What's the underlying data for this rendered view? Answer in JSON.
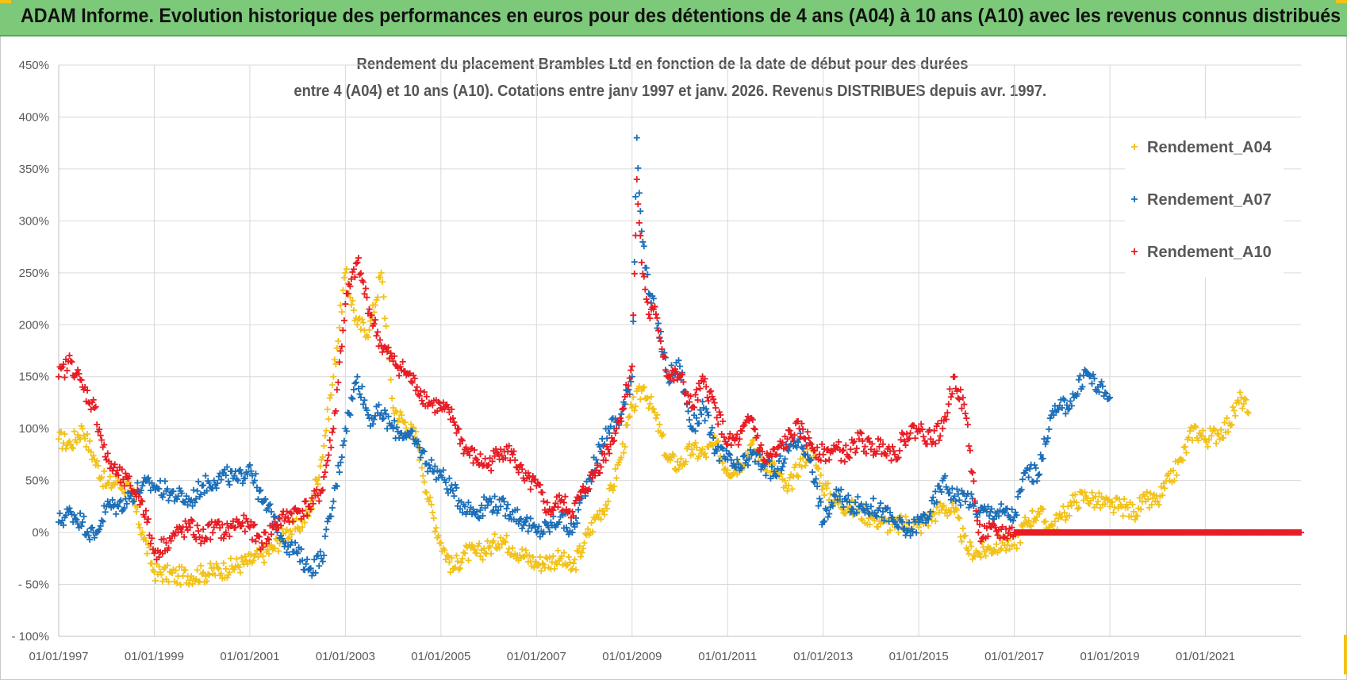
{
  "banner": {
    "title": "ADAM Informe. Evolution historique des performances en euros pour des détentions de 4 ans (A04) à 10 ans (A10) avec les revenus connus distribués"
  },
  "colors": {
    "banner_bg": "#7dc97a",
    "a04": "#f2c21a",
    "a07": "#1c6fb8",
    "a10": "#e81c24",
    "grid": "#d9d9d9",
    "axis_text": "#595959"
  },
  "chart_data": {
    "type": "scatter",
    "title_line1": "Rendement du placement Brambles Ltd en fonction de la date de début pour des durées",
    "title_line2": "entre 4 (A04) et 10 ans (A10).  Cotations entre janv 1997 et janv. 2026. Revenus  DISTRIBUES depuis avr. 1997.",
    "ylim": [
      -100,
      450
    ],
    "y_ticks": [
      -100,
      -50,
      0,
      50,
      100,
      150,
      200,
      250,
      300,
      350,
      400,
      450
    ],
    "y_tick_labels": [
      "- 100%",
      "- 50%",
      "0%",
      "50%",
      "100%",
      "150%",
      "200%",
      "250%",
      "300%",
      "350%",
      "400%",
      "450%"
    ],
    "xlim": [
      1997.0,
      2023.0
    ],
    "x_ticks": [
      1997,
      1999,
      2001,
      2003,
      2005,
      2007,
      2009,
      2011,
      2013,
      2015,
      2017,
      2019,
      2021
    ],
    "x_tick_labels": [
      "01/01/1997",
      "01/01/1999",
      "01/01/2001",
      "01/01/2003",
      "01/01/2005",
      "01/01/2007",
      "01/01/2009",
      "01/01/2011",
      "01/01/2013",
      "01/01/2015",
      "01/01/2017",
      "01/01/2019",
      "01/01/2021"
    ],
    "legend_position": "top-right",
    "series": [
      {
        "name": "Rendement_A04",
        "color": "#f2c21a",
        "points": [
          [
            1997.0,
            90
          ],
          [
            1997.25,
            85
          ],
          [
            1997.5,
            100
          ],
          [
            1997.75,
            70
          ],
          [
            1998.0,
            45
          ],
          [
            1998.25,
            50
          ],
          [
            1998.5,
            40
          ],
          [
            1998.75,
            0
          ],
          [
            1999.0,
            -38
          ],
          [
            1999.5,
            -42
          ],
          [
            2000.0,
            -40
          ],
          [
            2000.5,
            -35
          ],
          [
            2001.0,
            -28
          ],
          [
            2001.5,
            -15
          ],
          [
            2001.75,
            0
          ],
          [
            2002.0,
            5
          ],
          [
            2002.25,
            20
          ],
          [
            2002.5,
            70
          ],
          [
            2002.75,
            150
          ],
          [
            2003.0,
            250
          ],
          [
            2003.25,
            200
          ],
          [
            2003.5,
            195
          ],
          [
            2003.75,
            250
          ],
          [
            2004.0,
            120
          ],
          [
            2004.5,
            90
          ],
          [
            2004.75,
            30
          ],
          [
            2005.0,
            -10
          ],
          [
            2005.25,
            -35
          ],
          [
            2005.5,
            -20
          ],
          [
            2005.75,
            -20
          ],
          [
            2006.0,
            -15
          ],
          [
            2006.25,
            -5
          ],
          [
            2006.5,
            -15
          ],
          [
            2007.0,
            -30
          ],
          [
            2007.5,
            -25
          ],
          [
            2007.75,
            -35
          ],
          [
            2008.0,
            -10
          ],
          [
            2008.25,
            15
          ],
          [
            2008.5,
            30
          ],
          [
            2008.75,
            70
          ],
          [
            2009.0,
            120
          ],
          [
            2009.25,
            140
          ],
          [
            2009.5,
            110
          ],
          [
            2009.75,
            70
          ],
          [
            2010.0,
            65
          ],
          [
            2010.25,
            80
          ],
          [
            2010.5,
            75
          ],
          [
            2010.75,
            85
          ],
          [
            2011.0,
            60
          ],
          [
            2011.25,
            65
          ],
          [
            2011.5,
            85
          ],
          [
            2011.75,
            70
          ],
          [
            2012.0,
            60
          ],
          [
            2012.25,
            40
          ],
          [
            2012.5,
            65
          ],
          [
            2012.75,
            80
          ],
          [
            2013.0,
            45
          ],
          [
            2013.25,
            30
          ],
          [
            2013.5,
            25
          ],
          [
            2013.75,
            20
          ],
          [
            2014.0,
            15
          ],
          [
            2014.25,
            10
          ],
          [
            2014.5,
            5
          ],
          [
            2014.75,
            10
          ],
          [
            2015.0,
            5
          ],
          [
            2015.25,
            15
          ],
          [
            2015.5,
            25
          ],
          [
            2015.75,
            20
          ],
          [
            2016.0,
            -15
          ],
          [
            2016.25,
            -20
          ],
          [
            2016.5,
            -15
          ],
          [
            2016.75,
            -10
          ],
          [
            2017.0,
            -12
          ],
          [
            2017.25,
            10
          ],
          [
            2017.5,
            20
          ],
          [
            2017.75,
            5
          ],
          [
            2018.0,
            15
          ],
          [
            2018.25,
            30
          ],
          [
            2018.5,
            35
          ],
          [
            2018.75,
            30
          ],
          [
            2019.0,
            25
          ],
          [
            2019.25,
            25
          ],
          [
            2019.5,
            20
          ],
          [
            2019.75,
            30
          ],
          [
            2020.0,
            30
          ],
          [
            2020.25,
            50
          ],
          [
            2020.5,
            70
          ],
          [
            2020.75,
            100
          ],
          [
            2021.0,
            90
          ],
          [
            2021.25,
            95
          ],
          [
            2021.5,
            105
          ],
          [
            2021.75,
            130
          ],
          [
            2021.9,
            115
          ]
        ]
      },
      {
        "name": "Rendement_A07",
        "color": "#1c6fb8",
        "points": [
          [
            1997.0,
            10
          ],
          [
            1997.25,
            20
          ],
          [
            1997.5,
            10
          ],
          [
            1997.75,
            -5
          ],
          [
            1998.0,
            25
          ],
          [
            1998.25,
            25
          ],
          [
            1998.5,
            35
          ],
          [
            1998.75,
            45
          ],
          [
            1999.0,
            45
          ],
          [
            1999.25,
            40
          ],
          [
            1999.5,
            35
          ],
          [
            1999.75,
            30
          ],
          [
            2000.0,
            45
          ],
          [
            2000.25,
            50
          ],
          [
            2000.5,
            55
          ],
          [
            2000.75,
            50
          ],
          [
            2001.0,
            65
          ],
          [
            2001.25,
            30
          ],
          [
            2001.5,
            15
          ],
          [
            2001.75,
            -10
          ],
          [
            2002.0,
            -20
          ],
          [
            2002.25,
            -35
          ],
          [
            2002.5,
            -25
          ],
          [
            2002.75,
            30
          ],
          [
            2003.0,
            100
          ],
          [
            2003.25,
            150
          ],
          [
            2003.5,
            110
          ],
          [
            2003.75,
            115
          ],
          [
            2004.0,
            100
          ],
          [
            2004.25,
            95
          ],
          [
            2004.5,
            85
          ],
          [
            2004.75,
            65
          ],
          [
            2005.0,
            55
          ],
          [
            2005.25,
            40
          ],
          [
            2005.5,
            25
          ],
          [
            2005.75,
            20
          ],
          [
            2006.0,
            30
          ],
          [
            2006.25,
            25
          ],
          [
            2006.5,
            20
          ],
          [
            2006.75,
            10
          ],
          [
            2007.0,
            0
          ],
          [
            2007.25,
            5
          ],
          [
            2007.5,
            15
          ],
          [
            2007.75,
            0
          ],
          [
            2008.0,
            40
          ],
          [
            2008.25,
            70
          ],
          [
            2008.5,
            100
          ],
          [
            2008.75,
            110
          ],
          [
            2009.0,
            150
          ],
          [
            2009.1,
            380
          ],
          [
            2009.2,
            290
          ],
          [
            2009.35,
            230
          ],
          [
            2009.5,
            210
          ],
          [
            2009.75,
            150
          ],
          [
            2010.0,
            160
          ],
          [
            2010.25,
            100
          ],
          [
            2010.5,
            120
          ],
          [
            2010.75,
            80
          ],
          [
            2011.0,
            70
          ],
          [
            2011.25,
            60
          ],
          [
            2011.5,
            75
          ],
          [
            2011.75,
            65
          ],
          [
            2012.0,
            55
          ],
          [
            2012.25,
            80
          ],
          [
            2012.5,
            90
          ],
          [
            2012.75,
            70
          ],
          [
            2013.0,
            10
          ],
          [
            2013.25,
            35
          ],
          [
            2013.5,
            30
          ],
          [
            2013.75,
            25
          ],
          [
            2014.0,
            25
          ],
          [
            2014.25,
            20
          ],
          [
            2014.5,
            10
          ],
          [
            2014.75,
            0
          ],
          [
            2015.0,
            10
          ],
          [
            2015.25,
            20
          ],
          [
            2015.5,
            50
          ],
          [
            2015.75,
            35
          ],
          [
            2016.0,
            35
          ],
          [
            2016.25,
            20
          ],
          [
            2016.5,
            20
          ],
          [
            2016.75,
            20
          ],
          [
            2017.0,
            15
          ],
          [
            2017.25,
            60
          ],
          [
            2017.5,
            55
          ],
          [
            2017.75,
            110
          ],
          [
            2018.0,
            120
          ],
          [
            2018.25,
            130
          ],
          [
            2018.5,
            155
          ],
          [
            2018.75,
            140
          ],
          [
            2019.0,
            130
          ]
        ]
      },
      {
        "name": "Rendement_A10",
        "color": "#e81c24",
        "points": [
          [
            1997.0,
            150
          ],
          [
            1997.25,
            165
          ],
          [
            1997.5,
            140
          ],
          [
            1997.75,
            120
          ],
          [
            1998.0,
            70
          ],
          [
            1998.25,
            55
          ],
          [
            1998.5,
            45
          ],
          [
            1998.75,
            30
          ],
          [
            1999.0,
            -20
          ],
          [
            1999.25,
            -10
          ],
          [
            1999.5,
            0
          ],
          [
            1999.75,
            5
          ],
          [
            2000.0,
            -5
          ],
          [
            2000.25,
            5
          ],
          [
            2000.5,
            0
          ],
          [
            2000.75,
            10
          ],
          [
            2001.0,
            5
          ],
          [
            2001.25,
            -10
          ],
          [
            2001.5,
            5
          ],
          [
            2001.75,
            15
          ],
          [
            2002.0,
            20
          ],
          [
            2002.25,
            25
          ],
          [
            2002.5,
            40
          ],
          [
            2002.75,
            100
          ],
          [
            2003.0,
            220
          ],
          [
            2003.25,
            260
          ],
          [
            2003.5,
            215
          ],
          [
            2003.75,
            180
          ],
          [
            2004.0,
            165
          ],
          [
            2004.25,
            155
          ],
          [
            2004.5,
            140
          ],
          [
            2004.75,
            125
          ],
          [
            2005.0,
            120
          ],
          [
            2005.25,
            110
          ],
          [
            2005.5,
            80
          ],
          [
            2005.75,
            70
          ],
          [
            2006.0,
            65
          ],
          [
            2006.25,
            80
          ],
          [
            2006.5,
            75
          ],
          [
            2006.75,
            50
          ],
          [
            2007.0,
            45
          ],
          [
            2007.25,
            20
          ],
          [
            2007.5,
            30
          ],
          [
            2007.75,
            20
          ],
          [
            2008.0,
            40
          ],
          [
            2008.25,
            60
          ],
          [
            2008.5,
            80
          ],
          [
            2008.75,
            110
          ],
          [
            2009.0,
            160
          ],
          [
            2009.1,
            340
          ],
          [
            2009.2,
            260
          ],
          [
            2009.35,
            210
          ],
          [
            2009.5,
            210
          ],
          [
            2009.75,
            150
          ],
          [
            2010.0,
            150
          ],
          [
            2010.25,
            120
          ],
          [
            2010.5,
            145
          ],
          [
            2010.75,
            120
          ],
          [
            2011.0,
            85
          ],
          [
            2011.25,
            90
          ],
          [
            2011.5,
            110
          ],
          [
            2011.75,
            70
          ],
          [
            2012.0,
            75
          ],
          [
            2012.25,
            90
          ],
          [
            2012.5,
            100
          ],
          [
            2012.75,
            85
          ],
          [
            2013.0,
            75
          ],
          [
            2013.25,
            80
          ],
          [
            2013.5,
            75
          ],
          [
            2013.75,
            90
          ],
          [
            2014.0,
            80
          ],
          [
            2014.25,
            85
          ],
          [
            2014.5,
            75
          ],
          [
            2014.75,
            95
          ],
          [
            2015.0,
            100
          ],
          [
            2015.25,
            90
          ],
          [
            2015.5,
            100
          ],
          [
            2015.75,
            150
          ],
          [
            2016.0,
            110
          ],
          [
            2016.25,
            0
          ],
          [
            2017.0,
            0
          ],
          [
            2018.0,
            0
          ],
          [
            2019.0,
            0
          ],
          [
            2020.0,
            0
          ],
          [
            2021.0,
            0
          ],
          [
            2022.0,
            0
          ],
          [
            2023.0,
            0
          ]
        ]
      }
    ]
  }
}
